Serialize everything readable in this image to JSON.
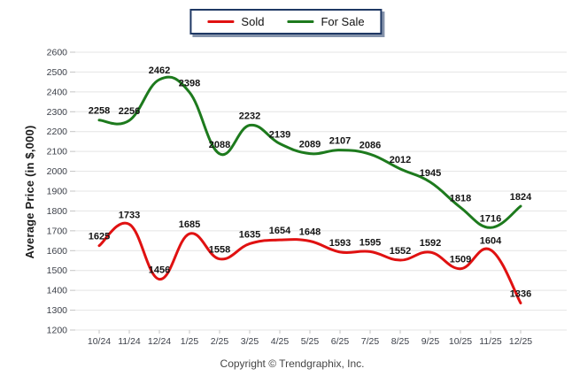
{
  "theme": {
    "legend_border": "#1f3864",
    "grid_color": "#e4e4e4",
    "tick_color": "#c4c4c4",
    "axis_text_color": "#3b3f48",
    "data_label_color": "#141414"
  },
  "chart_data": {
    "type": "line",
    "title": "",
    "xlabel": "",
    "ylabel": "Average Price (in $,000)",
    "ylim": [
      1200,
      2600
    ],
    "ytick_step": 100,
    "grid": true,
    "legend_position": "top-center",
    "smooth_curves": true,
    "data_labels_shown": true,
    "categories": [
      "10/24",
      "11/24",
      "12/24",
      "1/25",
      "2/25",
      "3/25",
      "4/25",
      "5/25",
      "6/25",
      "7/25",
      "8/25",
      "9/25",
      "10/25",
      "11/25",
      "12/25"
    ],
    "series": [
      {
        "name": "Sold",
        "color": "#e01111",
        "values": [
          1625,
          1733,
          1456,
          1685,
          1558,
          1635,
          1654,
          1648,
          1593,
          1595,
          1552,
          1592,
          1509,
          1604,
          1336
        ]
      },
      {
        "name": "For Sale",
        "color": "#1d7a1d",
        "values": [
          2258,
          2256,
          2462,
          2398,
          2088,
          2232,
          2139,
          2089,
          2107,
          2086,
          2012,
          1945,
          1818,
          1716,
          1824
        ]
      }
    ]
  },
  "footer": {
    "copyright": "Copyright © Trendgraphix, Inc."
  }
}
